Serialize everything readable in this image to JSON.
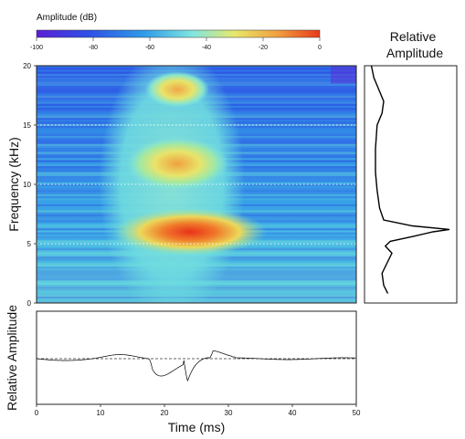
{
  "chart_data": [
    {
      "type": "heatmap",
      "panel": "spectrogram",
      "xlabel": "",
      "ylabel": "Frequency (kHz)",
      "xlim": [
        0,
        50
      ],
      "ylim": [
        0,
        20
      ],
      "y_ticks": [
        0,
        5,
        10,
        15,
        20
      ],
      "grid": "dotted horizontal lines at 5, 10, 15 kHz",
      "colorbar": {
        "title": "Amplitude (dB)",
        "range": [
          -100,
          0
        ],
        "ticks": [
          -100,
          -80,
          -60,
          -40,
          -20,
          0
        ],
        "colors": [
          "#5a1fd6",
          "#2f4fe6",
          "#2f9be8",
          "#7fe6e0",
          "#e8e86a",
          "#f0a040",
          "#e83a1a"
        ]
      },
      "energy_regions": [
        {
          "time_ms": [
            17,
            27
          ],
          "freq_khz": [
            16.5,
            19.5
          ],
          "peak_db": -35
        },
        {
          "time_ms": [
            14,
            30
          ],
          "freq_khz": [
            9.5,
            14
          ],
          "peak_db": -45
        },
        {
          "time_ms": [
            12,
            36
          ],
          "freq_khz": [
            4,
            8
          ],
          "peak_db": -10
        }
      ]
    },
    {
      "type": "line",
      "panel": "spectrum",
      "title": "Relative\nAmplitude",
      "orientation": "vertical, frequency on y axis shared with spectrogram",
      "x_freq_khz": [
        0.8,
        1.5,
        2.5,
        3.5,
        4.2,
        4.8,
        5.2,
        5.6,
        6.0,
        6.2,
        6.5,
        7.0,
        8.0,
        9.5,
        11,
        13,
        15,
        16,
        17,
        18,
        19,
        20
      ],
      "relative_amplitude": [
        0.25,
        0.2,
        0.18,
        0.25,
        0.3,
        0.22,
        0.28,
        0.55,
        0.8,
        1.0,
        0.55,
        0.2,
        0.15,
        0.12,
        0.1,
        0.1,
        0.12,
        0.18,
        0.2,
        0.14,
        0.08,
        0.05
      ]
    },
    {
      "type": "line",
      "panel": "waveform",
      "xlabel": "Time (ms)",
      "ylabel": "Relative Amplitude",
      "xlim": [
        0,
        50
      ],
      "x_ticks": [
        0,
        10,
        20,
        30,
        40,
        50
      ],
      "bursts": [
        {
          "time_ms": [
            17.5,
            23
          ],
          "peak": 1.0
        },
        {
          "time_ms": [
            23,
            27
          ],
          "peak": 0.62
        },
        {
          "time_ms": [
            27,
            30.5
          ],
          "peak": 0.35
        }
      ],
      "baseline": "dashed line at 0"
    }
  ]
}
